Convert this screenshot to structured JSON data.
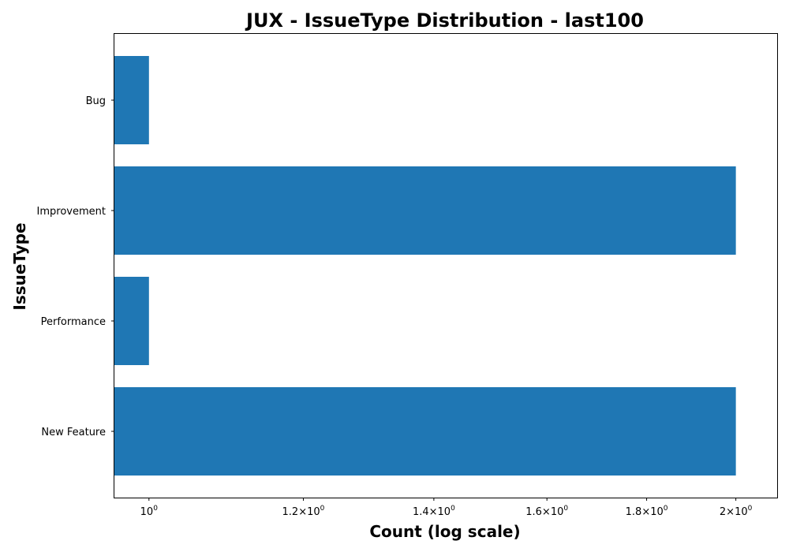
{
  "chart_data": {
    "type": "bar",
    "orientation": "horizontal",
    "title": "JUX - IssueType Distribution - last100",
    "xlabel": "Count (log scale)",
    "ylabel": "IssueType",
    "x_scale": "log",
    "xlim": [
      0.96,
      2.1
    ],
    "categories": [
      "Bug",
      "Improvement",
      "Performance",
      "New Feature"
    ],
    "values": [
      1,
      2,
      1,
      2
    ],
    "x_ticks": [
      {
        "value": 1.0,
        "mantissa": "",
        "base": "10",
        "exp": "0"
      },
      {
        "value": 1.2,
        "mantissa": "1.2",
        "base": "10",
        "exp": "0"
      },
      {
        "value": 1.4,
        "mantissa": "1.4",
        "base": "10",
        "exp": "0"
      },
      {
        "value": 1.6,
        "mantissa": "1.6",
        "base": "10",
        "exp": "0"
      },
      {
        "value": 1.8,
        "mantissa": "1.8",
        "base": "10",
        "exp": "0"
      },
      {
        "value": 2.0,
        "mantissa": "2",
        "base": "10",
        "exp": "0"
      }
    ],
    "bar_color": "#1f77b4",
    "grid": false,
    "legend": "none"
  }
}
